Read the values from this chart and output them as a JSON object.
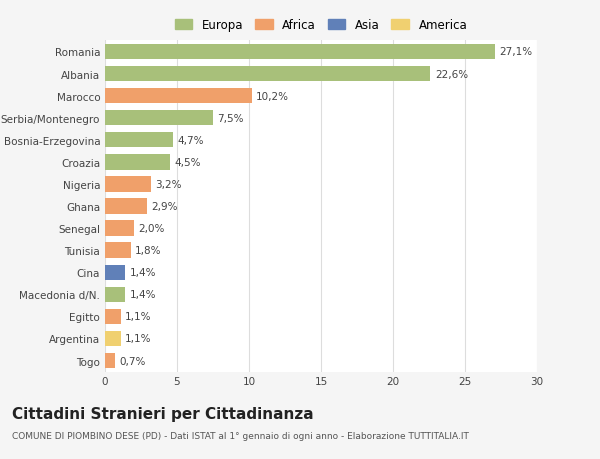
{
  "categories": [
    "Romania",
    "Albania",
    "Marocco",
    "Serbia/Montenegro",
    "Bosnia-Erzegovina",
    "Croazia",
    "Nigeria",
    "Ghana",
    "Senegal",
    "Tunisia",
    "Cina",
    "Macedonia d/N.",
    "Egitto",
    "Argentina",
    "Togo"
  ],
  "values": [
    27.1,
    22.6,
    10.2,
    7.5,
    4.7,
    4.5,
    3.2,
    2.9,
    2.0,
    1.8,
    1.4,
    1.4,
    1.1,
    1.1,
    0.7
  ],
  "labels": [
    "27,1%",
    "22,6%",
    "10,2%",
    "7,5%",
    "4,7%",
    "4,5%",
    "3,2%",
    "2,9%",
    "2,0%",
    "1,8%",
    "1,4%",
    "1,4%",
    "1,1%",
    "1,1%",
    "0,7%"
  ],
  "colors": [
    "#a8c07a",
    "#a8c07a",
    "#f0a06a",
    "#a8c07a",
    "#a8c07a",
    "#a8c07a",
    "#f0a06a",
    "#f0a06a",
    "#f0a06a",
    "#f0a06a",
    "#6080b8",
    "#a8c07a",
    "#f0a06a",
    "#f0d070",
    "#f0a06a"
  ],
  "legend": {
    "Europa": "#a8c07a",
    "Africa": "#f0a06a",
    "Asia": "#6080b8",
    "America": "#f0d070"
  },
  "title": "Cittadini Stranieri per Cittadinanza",
  "subtitle": "COMUNE DI PIOMBINO DESE (PD) - Dati ISTAT al 1° gennaio di ogni anno - Elaborazione TUTTITALIA.IT",
  "xlim": [
    0,
    30
  ],
  "xticks": [
    0,
    5,
    10,
    15,
    20,
    25,
    30
  ],
  "background_color": "#f5f5f5",
  "plot_background": "#ffffff",
  "grid_color": "#dddddd",
  "bar_height": 0.7,
  "label_fontsize": 7.5,
  "tick_fontsize": 7.5,
  "title_fontsize": 11,
  "subtitle_fontsize": 6.5
}
